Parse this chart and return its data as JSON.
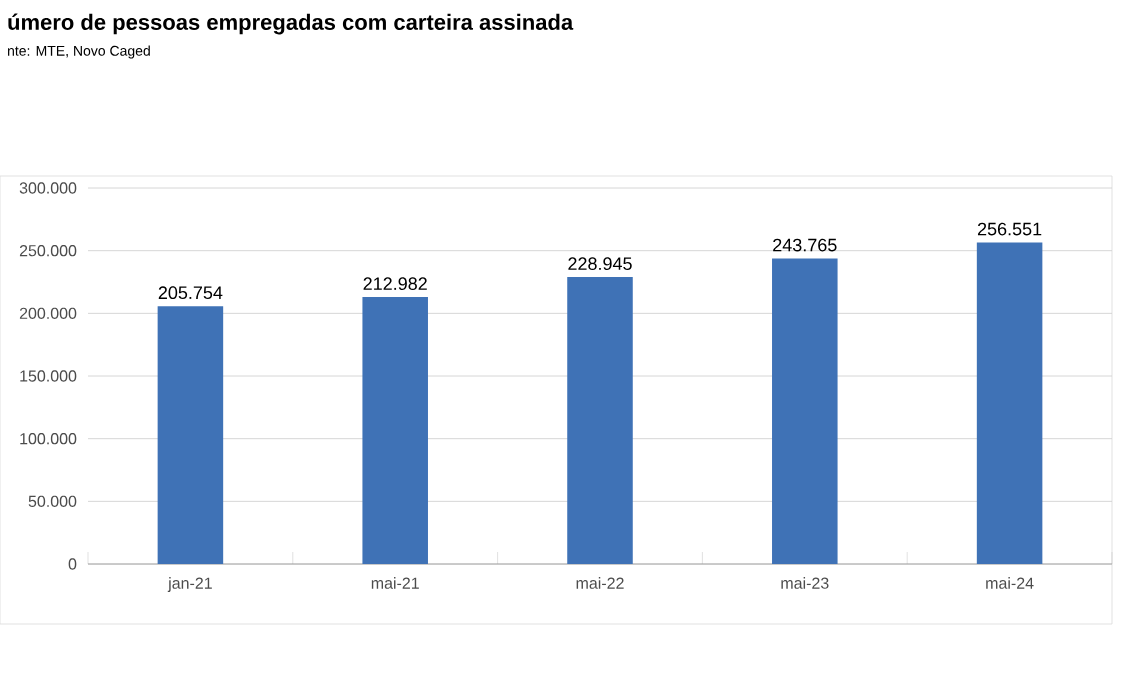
{
  "chart_data": {
    "type": "bar",
    "title": "úmero de pessoas empregadas com carteira assinada",
    "annotations": [
      "nte: MTE, Novo Caged"
    ],
    "categories": [
      "jan-21",
      "mai-21",
      "mai-22",
      "mai-23",
      "mai-24"
    ],
    "values": [
      205754,
      212982,
      228945,
      243765,
      256551
    ],
    "value_labels": [
      "205.754",
      "212.982",
      "228.945",
      "243.765",
      "256.551"
    ],
    "color": "#3f72b6",
    "ylim": [
      0,
      300000
    ],
    "yticks": [
      0,
      {
        "value": 50000,
        "label": "50.000"
      },
      {
        "value": 100000,
        "label": "100.000"
      },
      {
        "value": 150000,
        "label": "150.000"
      },
      {
        "value": 200000,
        "label": "200.000"
      },
      {
        "value": 250000,
        "label": "250.000"
      },
      {
        "value": 300000,
        "label": "300.000"
      }
    ],
    "grid": "y"
  }
}
